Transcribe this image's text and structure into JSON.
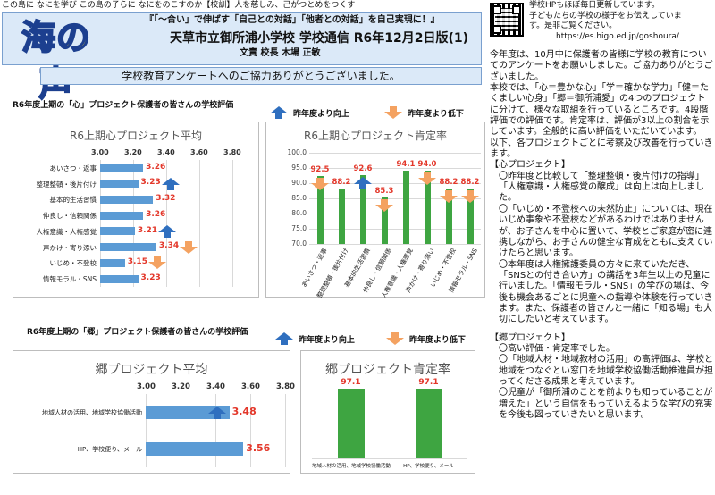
{
  "motto": "この島に なにを学び この島の子らに なにをのこすのか【校訓】人を慈しみ、己がつとめをつくす",
  "header": {
    "logo": "海の声",
    "subtitle": "『「～合い」で伸ばす「自己との対話」「他者との対話」を自己実現に！』",
    "school": "天草市立御所浦小学校 学校通信 R6年12月2日版(1)",
    "principal": "文責 校長 木場 正敏"
  },
  "banner": "学校教育アンケートへのご協力ありがとうございました。",
  "homepage": {
    "lines": [
      "学校HPもほぼ毎日更新しています。",
      "子どもたちの学校の様子をお伝えしていま",
      "す。是非ご覧ください。"
    ],
    "url": "https://es.higo.ed.jp/goshoura/"
  },
  "legend": {
    "up": "昨年度より向上",
    "down": "昨年度より低下"
  },
  "colors": {
    "bar_h": "#5b9bd5",
    "bar_v": "#3ea541",
    "value": "#e3372a",
    "up_arrow": "#2f6fbf",
    "down_arrow": "#f4a261"
  },
  "section1": {
    "title": "R6年度上期の「心」プロジェクト保護者の皆さんの学校評価"
  },
  "section2": {
    "title": "R6年度上期の「郷」プロジェクト保護者の皆さんの学校評価"
  },
  "chart_data": [
    {
      "type": "bar",
      "orientation": "horizontal",
      "title": "R6上期心プロジェクト平均",
      "categories": [
        "あいさつ・返事",
        "整理整頓・後片付け",
        "基本的生活習慣",
        "仲良し・信頼関係",
        "人権意識・人権感覚",
        "声かけ・寄り添い",
        "いじめ・不登校",
        "情報モラル・SNS"
      ],
      "values": [
        3.26,
        3.23,
        3.32,
        3.26,
        3.21,
        3.34,
        3.15,
        3.23
      ],
      "value_labels": [
        "3.26",
        "3.23",
        "3.32",
        "3.26",
        "3.21",
        "3.34",
        "3.15",
        "3.23"
      ],
      "xlim": [
        3.0,
        3.8
      ],
      "ticks": [
        "3.00",
        "3.20",
        "3.40",
        "3.60",
        "3.80"
      ],
      "change": [
        "none",
        "up",
        "none",
        "none",
        "up",
        "down",
        "down",
        "none"
      ]
    },
    {
      "type": "bar",
      "orientation": "vertical",
      "title": "R6上期心プロジェクト肯定率",
      "categories": [
        "あいさつ・返事",
        "整理整頓・後片付け",
        "基本的生活習慣",
        "仲良し・信頼関係",
        "人権意識・人権感覚",
        "声かけ・寄り添い",
        "いじめ・不登校",
        "情報モラル・SNS"
      ],
      "values": [
        92.5,
        88.2,
        92.6,
        85.3,
        94.1,
        94.0,
        88.2,
        88.2
      ],
      "value_labels": [
        "92.5",
        "88.2",
        "92.6",
        "85.3",
        "94.1",
        "94.0",
        "88.2",
        "88.2"
      ],
      "ylim": [
        70.0,
        100.0
      ],
      "ticks": [
        "70.0",
        "75.0",
        "80.0",
        "85.0",
        "90.0",
        "95.0",
        "100.0"
      ],
      "change": [
        "down",
        "none",
        "up",
        "down",
        "none",
        "down",
        "down",
        "down"
      ]
    },
    {
      "type": "bar",
      "orientation": "horizontal",
      "title": "郷プロジェクト平均",
      "categories": [
        "地域人材の活用、地域学校協働活動",
        "HP、学校便り、メール"
      ],
      "values": [
        3.48,
        3.56
      ],
      "value_labels": [
        "3.48",
        "3.56"
      ],
      "xlim": [
        3.0,
        3.8
      ],
      "ticks": [
        "3.00",
        "3.20",
        "3.40",
        "3.60",
        "3.80"
      ],
      "change": [
        "up",
        "none"
      ]
    },
    {
      "type": "bar",
      "orientation": "vertical",
      "title": "郷プロジェクト肯定率",
      "categories": [
        "地域人材の活用、地域学校協働活動",
        "HP、学校便り、メール"
      ],
      "values": [
        97.1,
        97.1
      ],
      "value_labels": [
        "97.1",
        "97.1"
      ],
      "ylim": [
        0,
        100
      ],
      "ticks": [],
      "change": [
        "none",
        "none"
      ]
    }
  ],
  "right_text": {
    "intro": [
      "今年度は、10月中に保護者の皆様に学校の教育についてのアンケートをお願いしました。ご協力ありがとうございました。",
      "本校では、「心＝豊かな心」「学＝確かな学力」「健＝たくましい心身」「郷＝御所浦愛」の4つのプロジェクトに分けて、様々な取組を行っているところです。4段階評価での評価です。肯定率は、評価が3以上の割合を示しています。全般的に高い評価をいただいています。",
      "以下、各プロジェクトごとに考察及び改善を行っていきます。"
    ],
    "kokoro_head": "【心プロジェクト】",
    "kokoro": [
      "〇昨年度と比較して「整理整頓・後片付けの指導」「人権意識・人権感覚の醸成」は向上は向上しました。",
      "〇「いじめ・不登校への未然防止」については、現在いじめ事象や不登校などがあるわけではありませんが、お子さんを中心に置いて、学校とご家庭が密に連携しながら、お子さんの健全な育成をともに支えていけたらと思います。",
      "〇本年度は人権擁護委員の方々に来ていただき、「SNSとの付き合い方」の講話を3年生以上の児童に行いました。「情報モラル・SNS」の学びの場は、今後も機会あるごとに児童への指導や体験を行っていきます。また、保護者の皆さんと一緒に「知る場」も大切にしたいと考えています。"
    ],
    "sato_head": "【郷プロジェクト】",
    "sato": [
      "〇高い評価・肯定率でした。",
      "〇「地域人材・地域教材の活用」の高評価は、学校と地域をつなぐとい窓口を地域学校協働活動推進員が担ってくださる成果と考えています。",
      "〇児童が「御所浦のことを前よりも知っていることが増えた」という自信をもっていえるような学びの充実を今後も図っていきたいと思います。"
    ]
  }
}
